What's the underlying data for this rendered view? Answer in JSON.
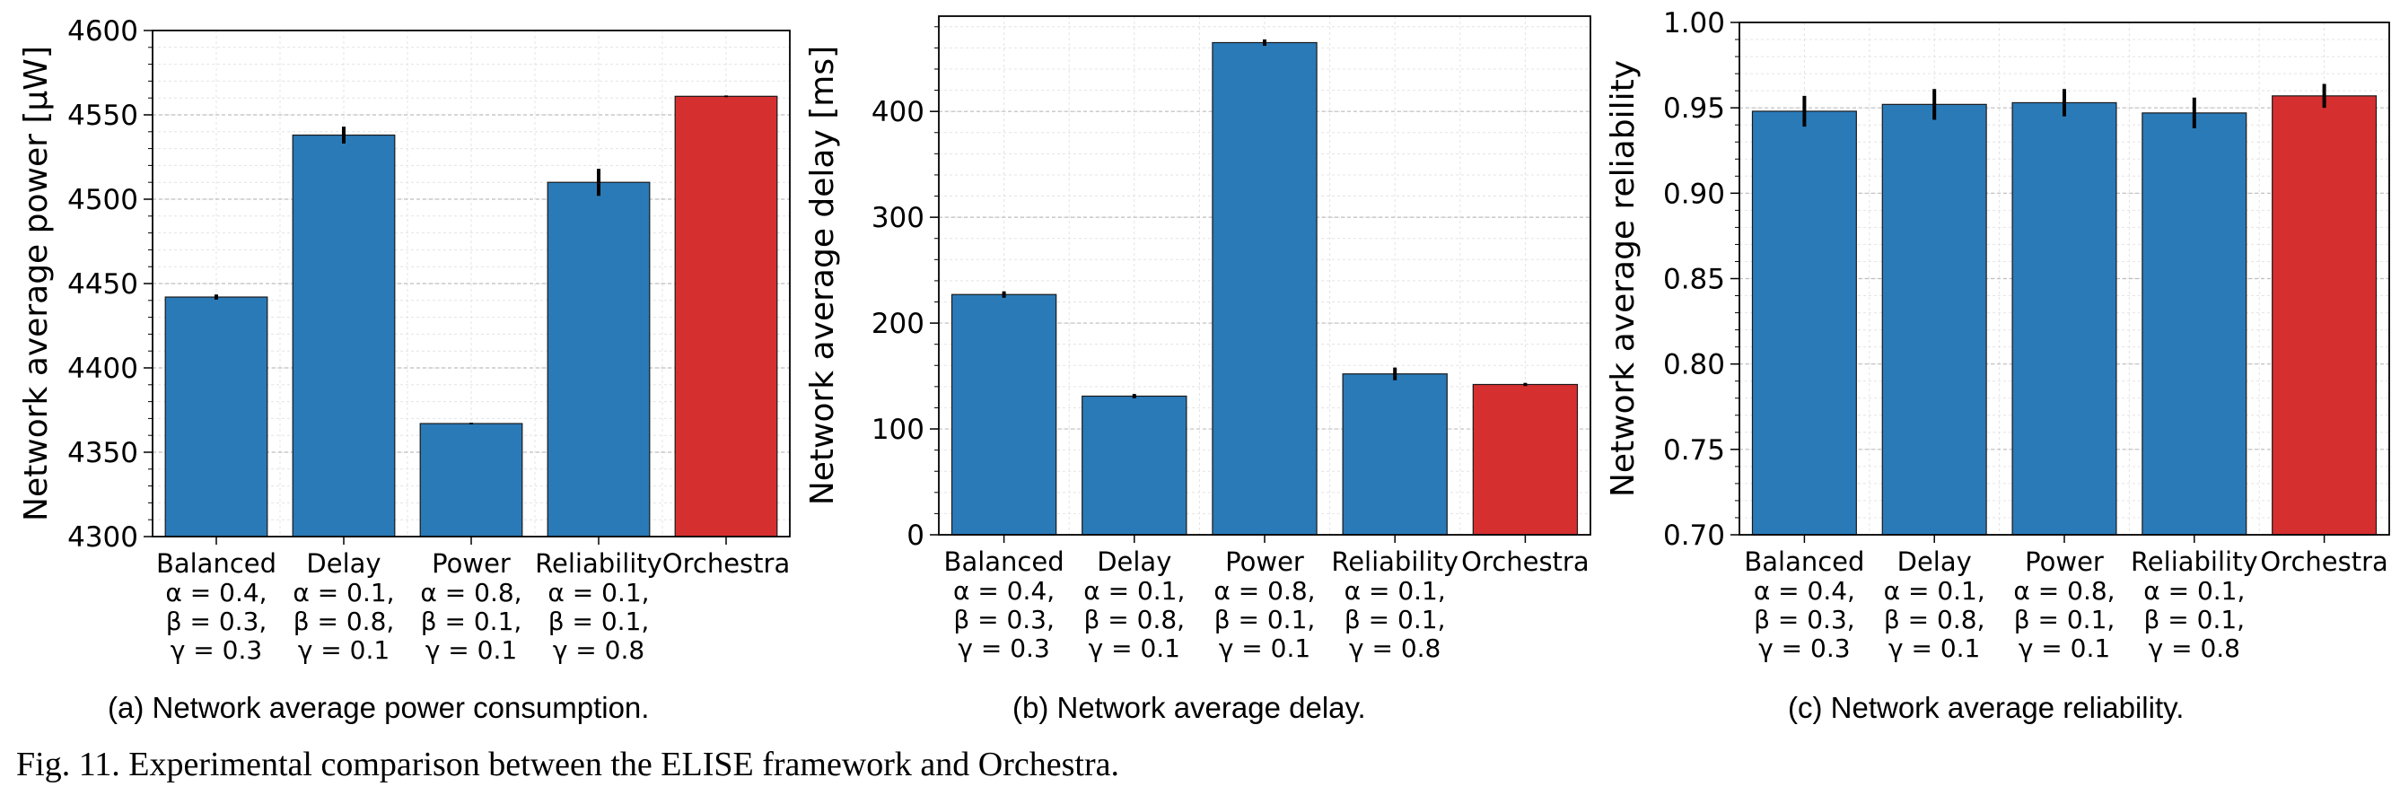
{
  "figure": {
    "caption": "Fig. 11.  Experimental comparison between the ELISE framework and Orchestra."
  },
  "colors": {
    "blue": "#2a7ab8",
    "red": "#d62f30"
  },
  "chart_data": [
    {
      "type": "bar",
      "caption": "(a) Network average power consumption.",
      "ylabel": "Network average power [μW]",
      "ylim": [
        4300,
        4600
      ],
      "yticks": [
        4300,
        4350,
        4400,
        4450,
        4500,
        4550,
        4600
      ],
      "grid": true,
      "categories": [
        [
          "Balanced",
          "α = 0.4,",
          "β = 0.3,",
          "γ = 0.3"
        ],
        [
          "Delay",
          "α = 0.1,",
          "β = 0.8,",
          "γ = 0.1"
        ],
        [
          "Power",
          "α = 0.8,",
          "β = 0.1,",
          "γ = 0.1"
        ],
        [
          "Reliability",
          "α = 0.1,",
          "β = 0.1,",
          "γ = 0.8"
        ],
        [
          "Orchestra"
        ]
      ],
      "values": [
        4442,
        4538,
        4367,
        4510,
        4561
      ],
      "errors": [
        1.5,
        5,
        0.5,
        8,
        0.5
      ],
      "bar_colors": [
        "#2a7ab8",
        "#2a7ab8",
        "#2a7ab8",
        "#2a7ab8",
        "#d62f30"
      ]
    },
    {
      "type": "bar",
      "caption": "(b) Network average delay.",
      "ylabel": "Network average delay [ms]",
      "ylim": [
        0,
        490
      ],
      "yticks": [
        0,
        100,
        200,
        300,
        400
      ],
      "grid": true,
      "categories": [
        [
          "Balanced",
          "α = 0.4,",
          "β = 0.3,",
          "γ = 0.3"
        ],
        [
          "Delay",
          "α = 0.1,",
          "β = 0.8,",
          "γ = 0.1"
        ],
        [
          "Power",
          "α = 0.8,",
          "β = 0.1,",
          "γ = 0.1"
        ],
        [
          "Reliability",
          "α = 0.1,",
          "β = 0.1,",
          "γ = 0.8"
        ],
        [
          "Orchestra"
        ]
      ],
      "values": [
        227,
        131,
        465,
        152,
        142
      ],
      "errors": [
        3,
        2,
        3,
        6,
        1.5
      ],
      "bar_colors": [
        "#2a7ab8",
        "#2a7ab8",
        "#2a7ab8",
        "#2a7ab8",
        "#d62f30"
      ]
    },
    {
      "type": "bar",
      "caption": "(c) Network average reliability.",
      "ylabel": "Network average reliability",
      "ylim": [
        0.7,
        1.0
      ],
      "yticks": [
        0.7,
        0.75,
        0.8,
        0.85,
        0.9,
        0.95,
        1.0
      ],
      "grid": true,
      "categories": [
        [
          "Balanced",
          "α = 0.4,",
          "β = 0.3,",
          "γ = 0.3"
        ],
        [
          "Delay",
          "α = 0.1,",
          "β = 0.8,",
          "γ = 0.1"
        ],
        [
          "Power",
          "α = 0.8,",
          "β = 0.1,",
          "γ = 0.1"
        ],
        [
          "Reliability",
          "α = 0.1,",
          "β = 0.1,",
          "γ = 0.8"
        ],
        [
          "Orchestra"
        ]
      ],
      "values": [
        0.948,
        0.952,
        0.953,
        0.947,
        0.957
      ],
      "errors": [
        0.009,
        0.009,
        0.008,
        0.009,
        0.007
      ],
      "bar_colors": [
        "#2a7ab8",
        "#2a7ab8",
        "#2a7ab8",
        "#2a7ab8",
        "#d62f30"
      ]
    }
  ]
}
